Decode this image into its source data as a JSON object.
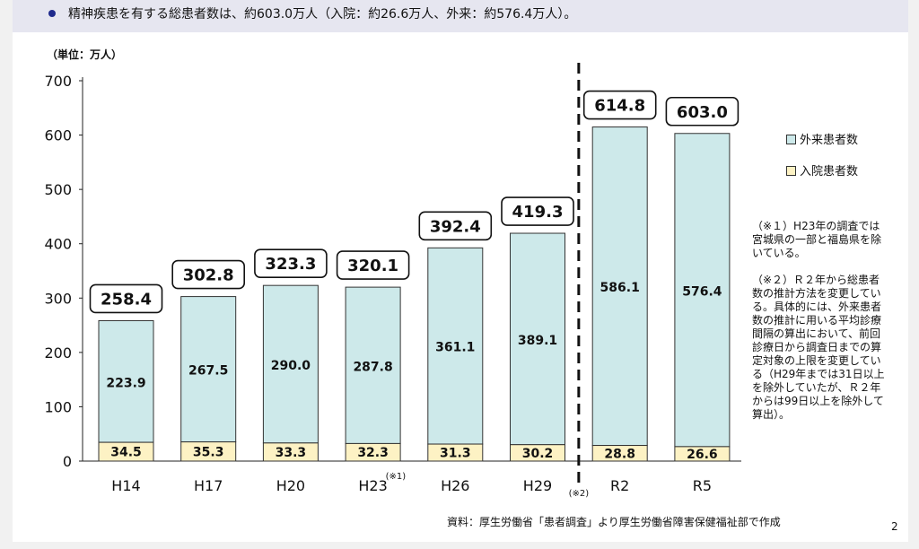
{
  "banner": {
    "text": "精神疾患を有する総患者数は、約603.0万人（入院：約26.6万人、外来：約576.4万人）。"
  },
  "chart_data": {
    "type": "bar",
    "stacked": true,
    "unit_label": "（単位：万人）",
    "categories": [
      "H14",
      "H17",
      "H20",
      "H23",
      "H26",
      "H29",
      "R2",
      "R5"
    ],
    "category_notes": [
      "",
      "",
      "",
      "(※1)",
      "",
      "",
      "",
      ""
    ],
    "series": [
      {
        "name": "入院患者数",
        "values": [
          34.5,
          35.3,
          33.3,
          32.3,
          31.3,
          30.2,
          28.8,
          26.6
        ],
        "color": "#fdf2c4"
      },
      {
        "name": "外来患者数",
        "values": [
          223.9,
          267.5,
          290.0,
          287.8,
          361.1,
          389.1,
          586.1,
          576.4
        ],
        "color": "#cde9ea"
      }
    ],
    "totals": [
      258.4,
      302.8,
      323.3,
      320.1,
      392.4,
      419.3,
      614.8,
      603.0
    ],
    "ylim": [
      0,
      700
    ],
    "yticks": [
      0,
      100,
      200,
      300,
      400,
      500,
      600,
      700
    ],
    "grid": false,
    "legend_position": "right",
    "divider": {
      "after_category": "H29",
      "label": "(※2)"
    }
  },
  "legend": {
    "outpatient": "外来患者数",
    "inpatient": "入院患者数"
  },
  "notes": {
    "note1": "（※１）H23年の調査では宮城県の一部と福島県を除いている。",
    "note2": "（※２）Ｒ２年から総患者数の推計方法を変更している。具体的には、外来患者数の推計に用いる平均診療間隔の算出において、前回診療日から調査日までの算定対象の上限を変更している（H29年までは31日以上を除外していたが、Ｒ２年からは99日以上を除外して算出）。"
  },
  "source": "資料：厚生労働省「患者調査」より厚生労働省障害保健福祉部で作成",
  "page_number": "2",
  "colors": {
    "outpatient": "#cde9ea",
    "inpatient": "#fdf2c4",
    "bar_border": "#333333",
    "banner_bg": "#e6e6f0",
    "banner_dot": "#1f2a8c"
  }
}
